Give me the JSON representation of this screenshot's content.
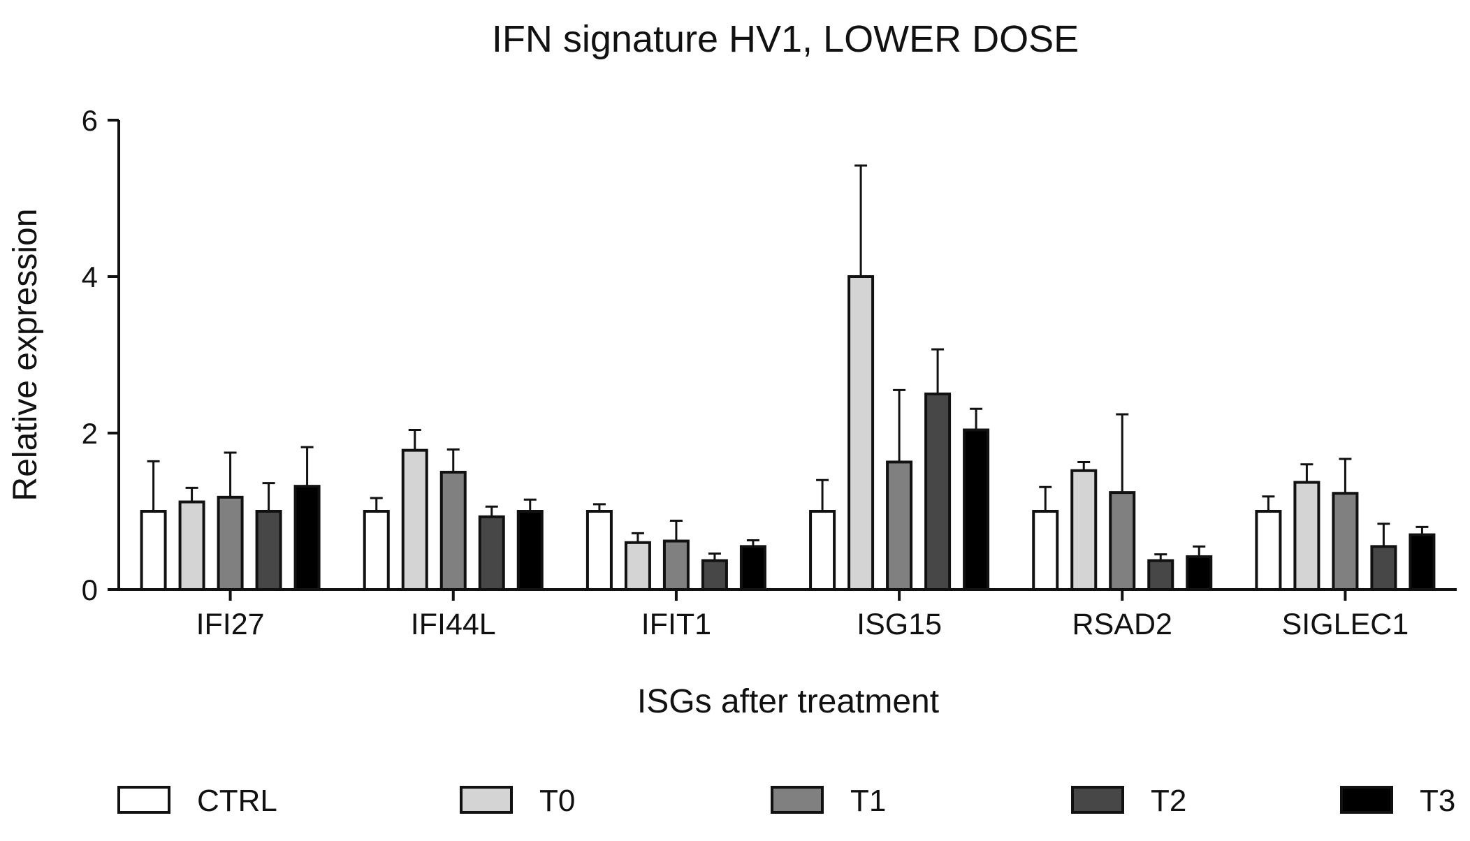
{
  "chart_data": {
    "type": "bar",
    "title": "IFN signature HV1, LOWER DOSE",
    "xlabel": "ISGs after treatment",
    "ylabel": "Relative expression",
    "ylim": [
      0,
      6
    ],
    "yticks": [
      "0",
      "2",
      "4",
      "6"
    ],
    "categories": [
      "IFI27",
      "IFI44L",
      "IFIT1",
      "ISG15",
      "RSAD2",
      "SIGLEC1"
    ],
    "series": [
      {
        "name": "CTRL",
        "color": "#ffffff",
        "values": [
          1.0,
          1.0,
          1.0,
          1.0,
          1.0,
          1.0
        ],
        "errors": [
          0.64,
          0.17,
          0.09,
          0.4,
          0.31,
          0.19
        ]
      },
      {
        "name": "T0",
        "color": "#d4d4d4",
        "values": [
          1.12,
          1.78,
          0.6,
          4.0,
          1.52,
          1.37
        ],
        "errors": [
          0.18,
          0.26,
          0.12,
          1.42,
          0.11,
          0.23
        ]
      },
      {
        "name": "T1",
        "color": "#808080",
        "values": [
          1.18,
          1.5,
          0.62,
          1.63,
          1.24,
          1.23
        ],
        "errors": [
          0.57,
          0.29,
          0.26,
          0.92,
          1.0,
          0.44
        ]
      },
      {
        "name": "T2",
        "color": "#474747",
        "values": [
          1.0,
          0.93,
          0.37,
          2.5,
          0.37,
          0.55
        ],
        "errors": [
          0.36,
          0.13,
          0.09,
          0.57,
          0.08,
          0.29
        ]
      },
      {
        "name": "T3",
        "color": "#000000",
        "values": [
          1.32,
          1.0,
          0.55,
          2.04,
          0.42,
          0.7
        ],
        "errors": [
          0.5,
          0.15,
          0.08,
          0.27,
          0.13,
          0.1
        ]
      }
    ],
    "legend_position": "bottom"
  }
}
